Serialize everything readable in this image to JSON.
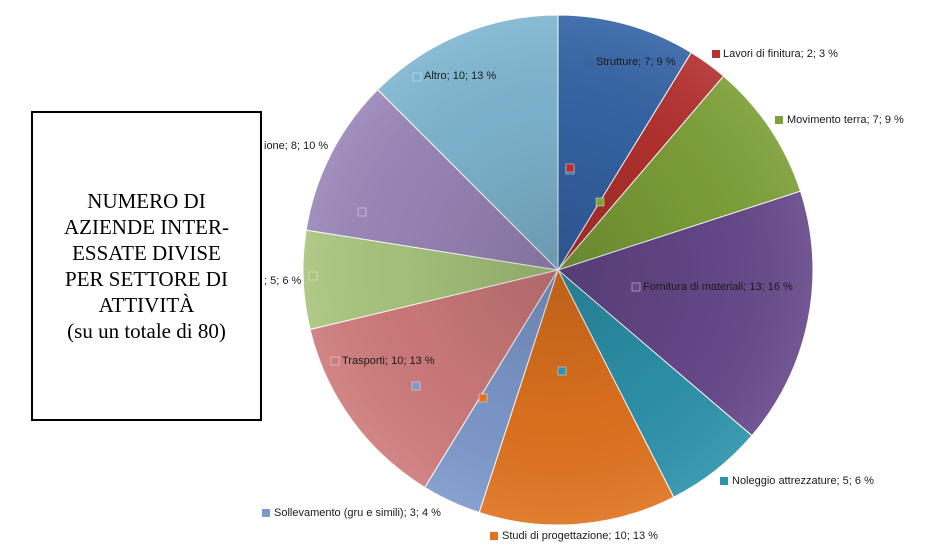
{
  "title_lines": [
    "NUMERO DI",
    "AZIENDE INTER-",
    "ESSATE DIVISE",
    "PER SETTORE DI",
    "ATTIVITÀ",
    "(su un totale di 80)"
  ],
  "chart_data": {
    "type": "pie",
    "title": "NUMERO DI AZIENDE INTERESSATE DIVISE PER SETTORE DI ATTIVITÀ (su un totale di 80)",
    "start_angle_deg": 0,
    "direction": "clockwise",
    "slices": [
      {
        "name": "Strutture",
        "value": 7,
        "percent": 9,
        "label": "Strutture; 7; 9 %",
        "color": "#3564a6"
      },
      {
        "name": "Lavori di finitura",
        "value": 2,
        "percent": 3,
        "label": "Lavori di finitura; 2; 3 %",
        "color": "#b3312f"
      },
      {
        "name": "Movimento terra",
        "value": 7,
        "percent": 9,
        "label": "Movimento terra; 7; 9 %",
        "color": "#7da038"
      },
      {
        "name": "Fornitura di materiali",
        "value": 13,
        "percent": 16,
        "label": "Fornitura di materiali; 13; 16 %",
        "color": "#66488a"
      },
      {
        "name": "Noleggio attrezzature",
        "value": 5,
        "percent": 6,
        "label": "Noleggio attrezzature; 5; 6 %",
        "color": "#2d93ab"
      },
      {
        "name": "Studi di progettazione",
        "value": 10,
        "percent": 13,
        "label": "Studi di progettazione; 10; 13 %",
        "color": "#e0731f"
      },
      {
        "name": "Sollevamento (gru e simili)",
        "value": 3,
        "percent": 4,
        "label": "Sollevamento (gru e simili); 3; 4 %",
        "color": "#7d99cc"
      },
      {
        "name": "Trasporti",
        "value": 10,
        "percent": 13,
        "label": "Trasporti; 10; 13 %",
        "color": "#cf7b7b"
      },
      {
        "name": "",
        "value": 5,
        "percent": 6,
        "label": "; 5; 6 %",
        "color": "#a9c67e"
      },
      {
        "name": "",
        "value": 8,
        "percent": 10,
        "label": "ione; 8; 10 %",
        "color": "#9a86b9"
      },
      {
        "name": "Altro",
        "value": 10,
        "percent": 13,
        "label": "Altro; 10; 13 %",
        "color": "#7fb6d1"
      }
    ]
  }
}
